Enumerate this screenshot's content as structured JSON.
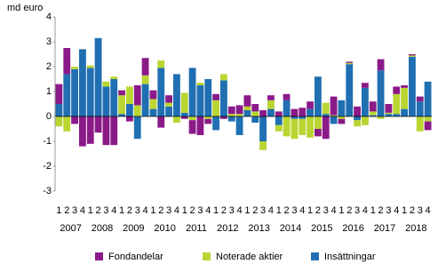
{
  "chart_data": {
    "type": "stacked_bar",
    "ylabel": "md euro",
    "categories": [
      "1",
      "2",
      "3",
      "4",
      "1",
      "2",
      "3",
      "4",
      "1",
      "2",
      "3",
      "4",
      "1",
      "2",
      "3",
      "4",
      "1",
      "2",
      "3",
      "4",
      "1",
      "2",
      "3",
      "4",
      "1",
      "2",
      "3",
      "4",
      "1",
      "2",
      "3",
      "4",
      "1",
      "2",
      "3",
      "4",
      "1",
      "2",
      "3",
      "4",
      "1",
      "2",
      "3",
      "4",
      "1",
      "2",
      "3",
      "4"
    ],
    "years": [
      "2007",
      "2008",
      "2009",
      "2010",
      "2011",
      "2012",
      "2013",
      "2014",
      "2015",
      "2016",
      "2017",
      "2018"
    ],
    "series": [
      {
        "name": "Fondandelar",
        "color": "#8b1a89",
        "values": [
          0.8,
          1.05,
          -0.3,
          -1.2,
          -1.1,
          -0.65,
          -1.15,
          -1.15,
          0.2,
          -0.2,
          0.8,
          0.7,
          0.35,
          -0.45,
          0.3,
          0,
          -0.1,
          -0.55,
          -0.75,
          -0.2,
          0.25,
          -0.1,
          0.3,
          0.35,
          0.45,
          0.3,
          0.25,
          0.2,
          0.2,
          0.25,
          0.3,
          0.35,
          0.3,
          -0.3,
          -0.9,
          0.75,
          -0.2,
          0.05,
          0.4,
          0.2,
          0.4,
          0.45,
          0.35,
          0.3,
          0.1,
          0.05,
          0.2,
          -0.35
        ]
      },
      {
        "name": "Noterade aktier",
        "color": "#b9d532",
        "values": [
          -0.4,
          -0.6,
          0.1,
          0,
          0.1,
          0,
          0.2,
          0.1,
          0.75,
          0.7,
          0.45,
          0.35,
          0.4,
          0.3,
          0.15,
          -0.25,
          0.8,
          -0.15,
          0.1,
          -0.1,
          0.65,
          0.25,
          0.1,
          0.1,
          0.15,
          0.2,
          -0.35,
          0.35,
          -0.25,
          -0.8,
          -0.8,
          -0.65,
          -0.85,
          -0.5,
          0.45,
          0.05,
          -0.1,
          0.05,
          -0.25,
          -0.35,
          0.15,
          -0.1,
          0.05,
          0.8,
          0.85,
          0.05,
          -0.6,
          -0.2
        ]
      },
      {
        "name": "Insättningar",
        "color": "#1f6fb2",
        "values": [
          0.5,
          1.7,
          1.9,
          2.7,
          1.95,
          3.15,
          1.2,
          1.5,
          0.1,
          0.5,
          -0.9,
          1.3,
          0.3,
          1.95,
          0.4,
          1.7,
          0.15,
          1.95,
          1.25,
          1.5,
          -0.55,
          1.45,
          -0.2,
          -0.75,
          0.25,
          -0.25,
          -1.0,
          0.3,
          -0.35,
          0.65,
          -0.1,
          -0.1,
          0.3,
          1.6,
          0.1,
          -0.3,
          0.65,
          2.1,
          -0.15,
          1.15,
          0.05,
          1.85,
          0.1,
          0.1,
          0.3,
          2.4,
          0.6,
          1.4
        ]
      }
    ],
    "ylim": [
      -3,
      4
    ],
    "yticks": [
      -3,
      -2,
      -1,
      0,
      1,
      2,
      3,
      4
    ],
    "legend": "bottom"
  }
}
